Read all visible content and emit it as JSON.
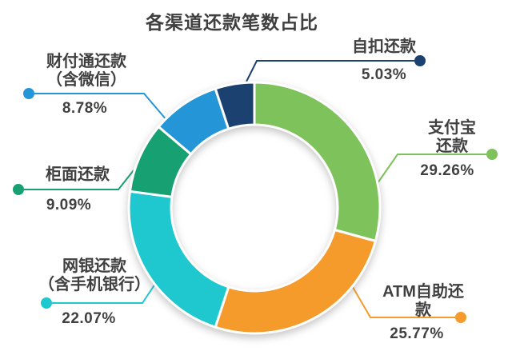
{
  "title": "各渠道还款笔数占比",
  "colors": {
    "background": "#ffffff",
    "text": "#404040",
    "title_text": "#3f3f3f",
    "segment_divider": "#ffffff"
  },
  "chart_data": {
    "type": "pie",
    "subtype": "donut",
    "title": "各渠道还款笔数占比",
    "unit": "%",
    "start_angle_deg": 0,
    "direction": "clockwise",
    "inner_radius_ratio": 0.66,
    "legend_position": "callouts-around-ring",
    "segments": [
      {
        "label": "支付宝还款",
        "value": 29.26,
        "pct": "29.26%",
        "color": "#7dc25a"
      },
      {
        "label": "ATM自助还款",
        "value": 25.77,
        "pct": "25.77%",
        "color": "#f49b2c"
      },
      {
        "label": "网银还款\n（含手机银行）",
        "value": 22.07,
        "pct": "22.07%",
        "color": "#1fc7ce"
      },
      {
        "label": "柜面还款",
        "value": 9.09,
        "pct": "9.09%",
        "color": "#17a173"
      },
      {
        "label": "财付通还款\n（含微信）",
        "value": 8.78,
        "pct": "8.78%",
        "color": "#2496d8"
      },
      {
        "label": "自扣还款",
        "value": 5.03,
        "pct": "5.03%",
        "color": "#1b4171"
      }
    ]
  }
}
